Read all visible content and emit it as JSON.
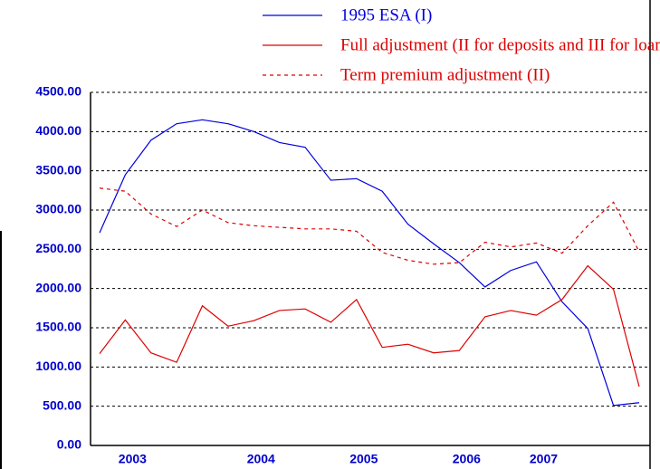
{
  "chart_data": {
    "type": "line",
    "categories": [
      null,
      "2003",
      null,
      null,
      null,
      null,
      "2004",
      null,
      null,
      null,
      "2005",
      null,
      null,
      null,
      "2006",
      null,
      null,
      "2007",
      null,
      null,
      null,
      null
    ],
    "series": [
      {
        "name": "1995 ESA (I)",
        "color": "#0000dd",
        "dash": false,
        "values": [
          2710,
          3450,
          3890,
          4100,
          4150,
          4100,
          4000,
          3860,
          3800,
          3380,
          3400,
          3240,
          2820,
          2570,
          2330,
          2020,
          2230,
          2340,
          1830,
          1490,
          510,
          545
        ]
      },
      {
        "name": "Full adjustment (II for deposits and III for loans)",
        "color": "#dd0000",
        "dash": false,
        "values": [
          1170,
          1600,
          1180,
          1060,
          1780,
          1520,
          1590,
          1720,
          1740,
          1570,
          1860,
          1250,
          1290,
          1180,
          1210,
          1640,
          1720,
          1660,
          1860,
          2290,
          1990,
          750
        ]
      },
      {
        "name": "Term premium adjustment (II)",
        "color": "#dd0000",
        "dash": true,
        "values": [
          3280,
          3240,
          2950,
          2790,
          3000,
          2840,
          2800,
          2780,
          2760,
          2760,
          2730,
          2460,
          2360,
          2310,
          2330,
          2590,
          2530,
          2580,
          2450,
          2800,
          3100,
          2470
        ]
      }
    ],
    "ylim": [
      0,
      4500
    ],
    "yticks": [
      {
        "value": 0,
        "label": "0.00"
      },
      {
        "value": 500,
        "label": "500.00"
      },
      {
        "value": 1000,
        "label": "1000.00"
      },
      {
        "value": 1500,
        "label": "1500.00"
      },
      {
        "value": 2000,
        "label": "2000.00"
      },
      {
        "value": 2500,
        "label": "2500.00"
      },
      {
        "value": 3000,
        "label": "3000.00"
      },
      {
        "value": 3500,
        "label": "3500.00"
      },
      {
        "value": 4000,
        "label": "4000.00"
      },
      {
        "value": 4500,
        "label": "4500.00"
      }
    ],
    "grid": true
  }
}
